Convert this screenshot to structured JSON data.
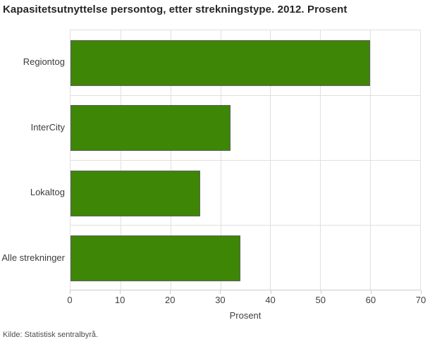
{
  "title": "Kapasitetsutnyttelse persontog, etter strekningstype. 2012. Prosent",
  "source": "Kilde: Statistisk sentralbyrå.",
  "colors": {
    "bar": "#3e8606",
    "bar_border": "#5f5f5f",
    "grid": "#e0e0e0",
    "axis": "#cccccc",
    "title_text": "#262626",
    "label_text": "#3c3c3c"
  },
  "chart_data": {
    "type": "bar",
    "orientation": "horizontal",
    "title": "Kapasitetsutnyttelse persontog, etter strekningstype. 2012. Prosent",
    "categories": [
      "Regiontog",
      "InterCity",
      "Lokaltog",
      "Alle strekninger"
    ],
    "values": [
      60,
      32,
      26,
      34
    ],
    "xlabel": "Prosent",
    "ylabel": "",
    "xlim": [
      0,
      70
    ],
    "xticks": [
      0,
      10,
      20,
      30,
      40,
      50,
      60,
      70
    ],
    "grid": true,
    "legend": false
  }
}
